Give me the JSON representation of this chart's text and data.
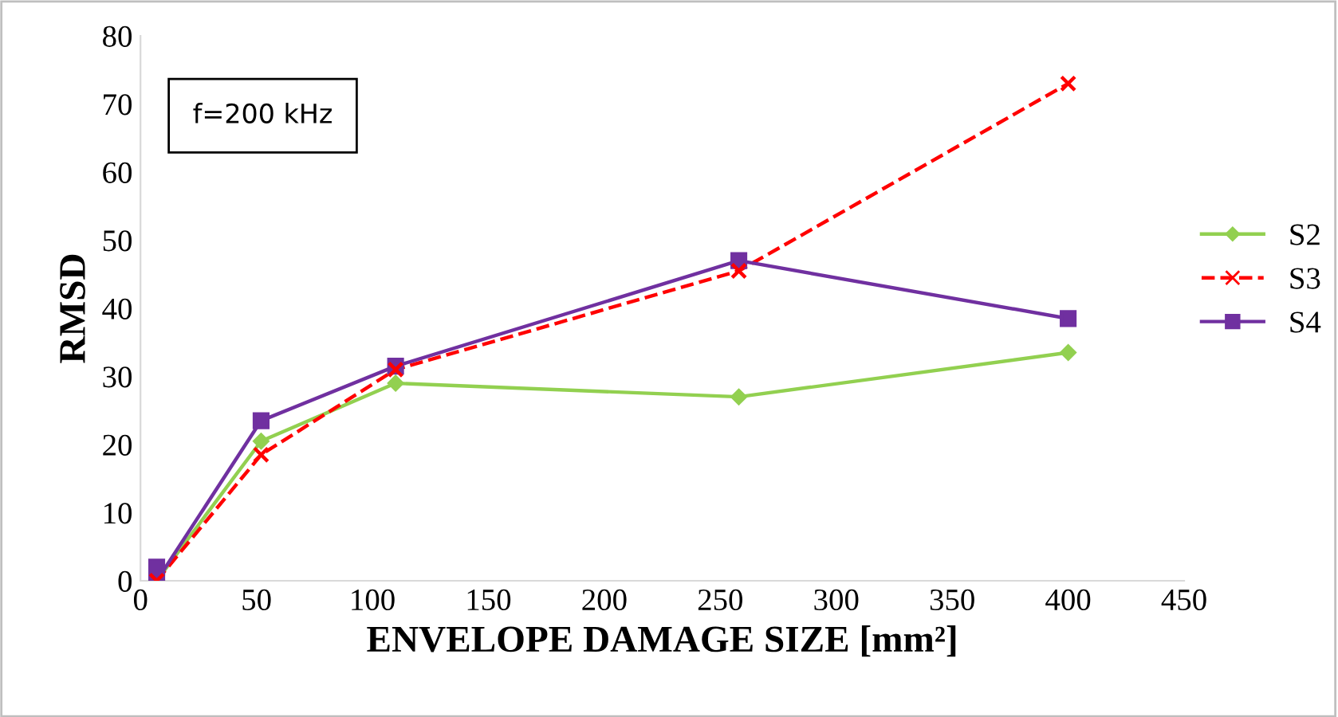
{
  "chart_data": {
    "type": "line",
    "xlabel": "ENVELOPE DAMAGE SIZE [mm²]",
    "ylabel": "RMSD",
    "xlim": [
      0,
      450
    ],
    "xticks": [
      0,
      50,
      100,
      150,
      200,
      250,
      300,
      350,
      400,
      450
    ],
    "ylim": [
      0,
      80
    ],
    "yticks": [
      0,
      10,
      20,
      30,
      40,
      50,
      60,
      70,
      80
    ],
    "grid": false,
    "legend": "right",
    "annotations": [
      "f=200 kHz"
    ],
    "series": [
      {
        "name": "S2",
        "color": "#92d050",
        "marker": "diamond",
        "line_style": "solid",
        "x": [
          7,
          52,
          110,
          258,
          400
        ],
        "values": [
          0,
          20.5,
          29,
          27,
          33.5
        ]
      },
      {
        "name": "S3",
        "color": "#ff0000",
        "marker": "cross",
        "line_style": "dashed",
        "x": [
          7,
          52,
          110,
          258,
          400
        ],
        "values": [
          0,
          18.5,
          31,
          45.5,
          73
        ]
      },
      {
        "name": "S4",
        "color": "#7030a0",
        "marker": "square",
        "line_style": "solid",
        "x": [
          7,
          7,
          52,
          110,
          258,
          400
        ],
        "values": [
          2,
          0,
          23.5,
          31.5,
          47,
          38.5
        ]
      }
    ]
  }
}
